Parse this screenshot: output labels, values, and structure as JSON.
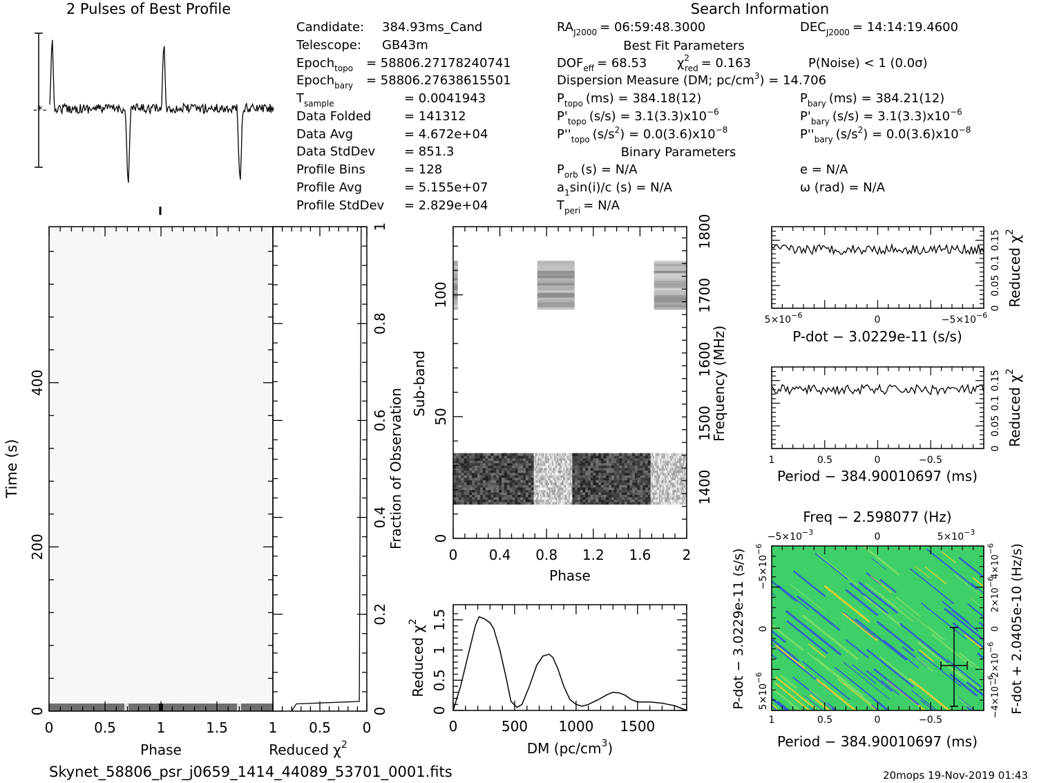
{
  "header": {
    "left_title": "2 Pulses of Best Profile",
    "right_title": "Search Information",
    "best_fit_title": "Best Fit Parameters",
    "binary_title": "Binary Parameters"
  },
  "info_left": [
    {
      "label": "Candidate:",
      "value": "384.93ms_Cand"
    },
    {
      "label": "Telescope:",
      "value": "GB43m"
    },
    {
      "label": "Epoch",
      "sub": "topo",
      "value": "= 58806.27178240741"
    },
    {
      "label": "Epoch",
      "sub": "bary",
      "value": "= 58806.27638615501"
    },
    {
      "label": "T",
      "sub": "sample",
      "value": "=   0.0041943"
    },
    {
      "label": "Data Folded",
      "value": "=   141312"
    },
    {
      "label": "Data Avg",
      "value": "=   4.672e+04"
    },
    {
      "label": "Data StdDev",
      "value": "=   851.3"
    },
    {
      "label": "Profile Bins",
      "value": "=   128"
    },
    {
      "label": "Profile Avg",
      "value": "=   5.155e+07"
    },
    {
      "label": "Profile StdDev",
      "value": "=   2.829e+04"
    }
  ],
  "info_mid": {
    "ra_label": "RA",
    "ra_sub": "J2000",
    "ra_value": "= 06:59:48.3000",
    "dec_label": "DEC",
    "dec_sub": "J2000",
    "dec_value": "= 14:14:19.4600",
    "dof": "DOF",
    "dof_sub": "eff",
    "dof_value": "= 68.53",
    "chi_label": "χ",
    "chi_sup": "2",
    "chi_sub": "red",
    "chi_value": "= 0.163",
    "pnoise": "P(Noise) < 1   (0.0σ)",
    "dm_line": "Dispersion Measure (DM; pc/cm",
    "dm_sup": "3",
    "dm_value": ") = 14.706",
    "ptopo": "P",
    "ptopo_sub": "topo",
    "ptopo_value": "(ms)  =   384.18(12)",
    "pbary": "P",
    "pbary_sub": "bary",
    "pbary_value": "(ms)  =   384.21(12)",
    "pdtopo": "P'",
    "pdtopo_sub": "topo",
    "pdtopo_value": "(s/s) =   3.1(3.3)x10",
    "pdtopo_exp": "−6",
    "pdbary": "P'",
    "pdbary_sub": "bary",
    "pdbary_value": "(s/s) =   3.1(3.3)x10",
    "pdbary_exp": "−6",
    "pddtopo": "P''",
    "pddtopo_sub": "topo",
    "pddtopo_value": "(s/s",
    "pddtopo_sup": "2",
    "pddtopo_tail": ") = 0.0(3.6)x10",
    "pddtopo_exp": "−8",
    "pddbary": "P''",
    "pddbary_sub": "bary",
    "pddbary_value": "(s/s",
    "pddbary_sup": "2",
    "pddbary_tail": ") = 0.0(3.6)x10",
    "pddbary_exp": "−8",
    "porb": "P",
    "porb_sub": "orb",
    "porb_value": "(s) = N/A",
    "ecc": "e = N/A",
    "asini": "a",
    "asini_sub": "1",
    "asini_value": "sin(i)/c (s) = N/A",
    "omega": "ω (rad) = N/A",
    "tperi": "T",
    "tperi_sub": "peri",
    "tperi_value": "= N/A"
  },
  "footer": {
    "filename": "Skynet_58806_psr_j0659_1414_44089_53701_0001.fits",
    "stamp": "20mops 19-Nov-2019 01:43"
  },
  "colors": {
    "ink": "#000000",
    "waterfall": "#9a9a9a",
    "ppdot_bg": "#3fcf68",
    "ppdot_stripe": "#2e55d8",
    "ppdot_hot": "#f2d030"
  },
  "chart_data": [
    {
      "id": "profile",
      "type": "line",
      "title": "2 Pulses of Best Profile",
      "x_range": [
        0,
        2
      ],
      "peaks": [
        {
          "phase": 0.02,
          "kind": "spike-up"
        },
        {
          "phase": 1.02,
          "kind": "spike-up"
        },
        {
          "phase": 0.7,
          "kind": "spike-down"
        },
        {
          "phase": 1.7,
          "kind": "spike-down"
        }
      ]
    },
    {
      "id": "time_phase",
      "type": "heatmap",
      "xlabel": "Phase",
      "ylabel": "Time (s)",
      "xlim": [
        0,
        2
      ],
      "ylim": [
        0,
        590
      ],
      "xticks": [
        "0",
        "0.5",
        "1",
        "1.5"
      ],
      "yticks": [
        "0",
        "200",
        "400"
      ]
    },
    {
      "id": "time_chi2",
      "type": "line",
      "xlabel": "Reduced χ",
      "xlabel_sup": "2",
      "ylabel": "Fraction of Observation",
      "xticks": [
        "1",
        "0.5",
        "0"
      ],
      "yticks": [
        "0",
        "0.2",
        "0.4",
        "0.6",
        "0.8",
        "1"
      ],
      "x": [
        0.8,
        0.75,
        0.08,
        0.07,
        0.06
      ],
      "y": [
        0,
        0.015,
        0.02,
        0.5,
        1
      ]
    },
    {
      "id": "subband_phase",
      "type": "heatmap",
      "xlabel": "Phase",
      "ylabel": "Sub-band",
      "y2label": "Frequency (MHz)",
      "xlim": [
        0,
        2
      ],
      "ylim": [
        0,
        128
      ],
      "xticks": [
        "0",
        "0.4",
        "0.8",
        "1.2",
        "1.6",
        "2"
      ],
      "yticks": [
        "0",
        "50",
        "100"
      ],
      "y2ticks": [
        "1400",
        "1500",
        "1600",
        "1700",
        "1800"
      ]
    },
    {
      "id": "dm_chi2",
      "type": "line",
      "xlabel": "DM (pc/cm",
      "xlabel_sup": "3",
      "xlabel_tail": ")",
      "ylabel": "Reduced χ",
      "ylabel_sup": "2",
      "xlim": [
        0,
        1900
      ],
      "ylim": [
        0,
        1.75
      ],
      "xticks": [
        "0",
        "500",
        "1000",
        "1500"
      ],
      "yticks": [
        "0",
        "0.5",
        "1",
        "1.5"
      ],
      "x": [
        0,
        60,
        120,
        180,
        210,
        250,
        300,
        330,
        380,
        430,
        470,
        520,
        560,
        620,
        680,
        730,
        780,
        810,
        850,
        900,
        950,
        1000,
        1050,
        1100,
        1150,
        1200,
        1250,
        1300,
        1350,
        1400,
        1450,
        1500,
        1550,
        1600,
        1650,
        1700,
        1750,
        1800,
        1850,
        1900
      ],
      "y": [
        0.0,
        0.4,
        0.9,
        1.4,
        1.55,
        1.52,
        1.45,
        1.35,
        1.0,
        0.55,
        0.15,
        0.05,
        0.1,
        0.4,
        0.75,
        0.9,
        0.93,
        0.88,
        0.7,
        0.4,
        0.18,
        0.1,
        0.07,
        0.1,
        0.15,
        0.2,
        0.26,
        0.3,
        0.29,
        0.25,
        0.18,
        0.14,
        0.14,
        0.14,
        0.13,
        0.12,
        0.1,
        0.08,
        0.04,
        0.0
      ]
    },
    {
      "id": "pdot_chi2",
      "type": "line",
      "xlabel": "P-dot − 3.0229e-11 (s/s)",
      "ylabel": "Reduced χ",
      "ylabel_sup": "2",
      "xticks": [
        "5×10",
        "0",
        "−5×10"
      ],
      "xticks_exp": "−6",
      "yticks": [
        "0",
        "0.05",
        "0.1",
        "0.15"
      ],
      "ylim": [
        0,
        0.18
      ],
      "level": 0.13
    },
    {
      "id": "period_chi2",
      "type": "line",
      "xlabel": "Period − 384.90010697 (ms)",
      "ylabel": "Reduced χ",
      "ylabel_sup": "2",
      "xticks": [
        "1",
        "0.5",
        "0",
        "−0.5"
      ],
      "yticks": [
        "0",
        "0.05",
        "0.1",
        "0.15"
      ],
      "ylim": [
        0,
        0.18
      ],
      "level": 0.13
    },
    {
      "id": "ppdot",
      "type": "heatmap",
      "title": "Freq − 2.598077 (Hz)",
      "top_ticks": [
        "−5×10",
        "0",
        "5×10"
      ],
      "top_ticks_exp": "−3",
      "xlabel": "Period − 384.90010697 (ms)",
      "ylabel": "P-dot − 3.0229e-11 (s/s)",
      "y2label": "F-dot + 2.0405e-10 (Hz/s)",
      "xticks": [
        "1",
        "0.5",
        "0",
        "−0.5"
      ],
      "yticks": [
        "5×10",
        "0",
        "−5×10"
      ],
      "yticks_exp": "−6",
      "y2ticks": [
        "−4×10",
        "−2×10",
        "0",
        "2×10",
        "4×10"
      ],
      "y2ticks_exp": "−6",
      "best": {
        "x": -0.7,
        "y": 5.2e-07
      }
    }
  ]
}
